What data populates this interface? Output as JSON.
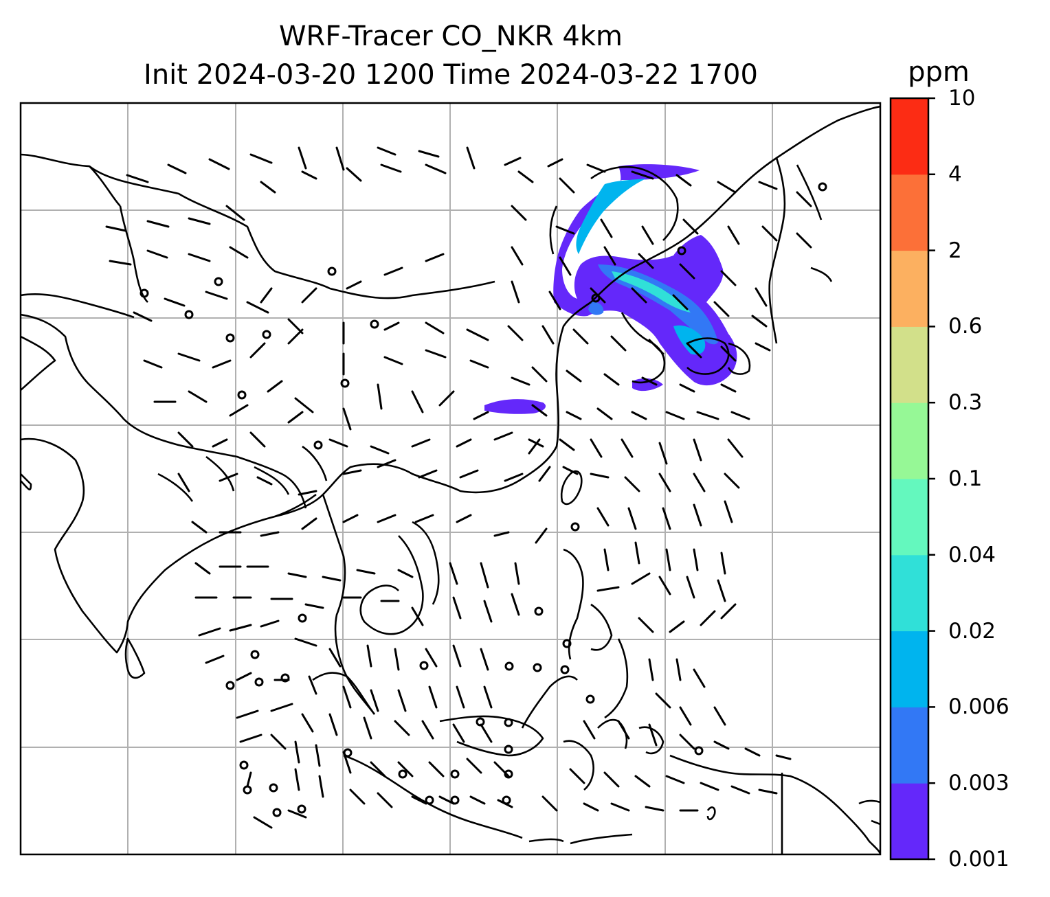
{
  "title": {
    "line1": "WRF-Tracer CO_NKR 4km",
    "line2": "Init 2024-03-20 1200 Time 2024-03-22 1700"
  },
  "colorbar": {
    "unit": "ppm",
    "levels": [
      "0.001",
      "0.003",
      "0.006",
      "0.02",
      "0.04",
      "0.1",
      "0.3",
      "0.6",
      "2",
      "4",
      "10"
    ],
    "colors": [
      "#6428fa",
      "#3278f5",
      "#00b4ee",
      "#30e0d8",
      "#64f8be",
      "#96f896",
      "#d2e08a",
      "#fcb060",
      "#fc7038",
      "#fc2c14"
    ]
  },
  "map": {
    "features": [
      "coastlines",
      "country-borders",
      "lat-lon-gridlines",
      "wind-barbs",
      "calm-circles",
      "tracer-shading"
    ],
    "colors": {
      "land_lines": "#000000",
      "grid": "#b0b0b0",
      "frame": "#000000"
    }
  }
}
